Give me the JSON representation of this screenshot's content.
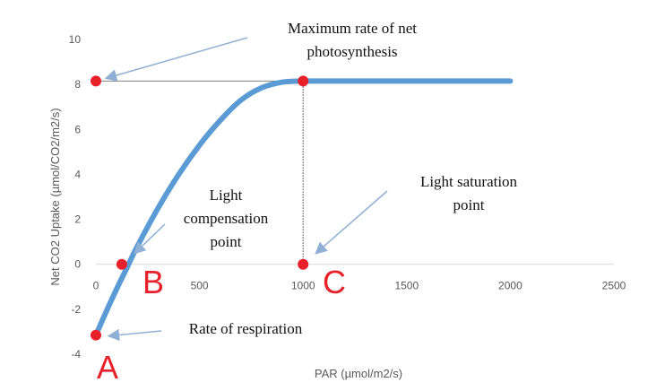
{
  "chart_data": {
    "type": "line",
    "title": "",
    "xlabel": "PAR (µmol/m2/s)",
    "ylabel": "Net CO2 Uptake (µmol/CO2/m2/s)",
    "xlim": [
      0,
      2500
    ],
    "ylim": [
      -4,
      10
    ],
    "x_ticks": [
      "0",
      "500",
      "1000",
      "1500",
      "2000",
      "2500"
    ],
    "y_ticks": [
      "-4",
      "-2",
      "0",
      "2",
      "4",
      "6",
      "8",
      "10"
    ],
    "grid": "horizontal",
    "series": [
      {
        "color": "#5b9bd5",
        "x": [
          0,
          50,
          100,
          150,
          200,
          300,
          400,
          500,
          600,
          700,
          800,
          900,
          1000,
          1100,
          1200,
          1500,
          2000
        ],
        "y": [
          -3.15,
          -2.1,
          -1.1,
          -0.15,
          0.8,
          2.5,
          4.0,
          5.3,
          6.4,
          7.3,
          7.85,
          8.1,
          8.15,
          8.15,
          8.15,
          8.15,
          8.15
        ]
      }
    ],
    "points": [
      {
        "x": 0,
        "y": -3.15
      },
      {
        "x": 125,
        "y": 0
      },
      {
        "x": 1000,
        "y": 0
      },
      {
        "x": 1000,
        "y": 8.15
      },
      {
        "x": 0,
        "y": 8.15
      }
    ],
    "point_color": "#e8202a",
    "annotations": [
      {
        "lines": [
          "Maximum rate of net",
          "photosynthesis"
        ]
      },
      {
        "lines": [
          "Light",
          "compensation",
          "point"
        ]
      },
      {
        "lines": [
          "Light saturation",
          "point"
        ]
      },
      {
        "lines": [
          "Rate of respiration"
        ]
      }
    ],
    "letters": [
      "A",
      "B",
      "C"
    ]
  }
}
